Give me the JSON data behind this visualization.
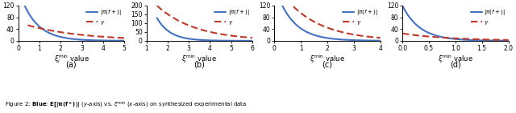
{
  "panels": [
    {
      "xlabel": "$\\xi_i^{\\mathrm{min}}$ value",
      "xlim": [
        0.0,
        5.0
      ],
      "ylim": [
        0,
        120
      ],
      "xticks": [
        0.0,
        1.0,
        2.0,
        3.0,
        4.0,
        5.0
      ],
      "yticks": [
        0,
        40,
        80,
        120
      ],
      "label": "(a)",
      "blue_x0": 0.3,
      "blue_scale": 120,
      "blue_decay": 1.3,
      "red_x0": 0.45,
      "red_scale": 53,
      "red_decay": 0.38
    },
    {
      "xlabel": "$\\xi^{\\mathrm{min}}$ value",
      "xlim": [
        1.0,
        6.0
      ],
      "ylim": [
        0,
        200
      ],
      "xticks": [
        1.0,
        2.0,
        3.0,
        4.0,
        5.0,
        6.0
      ],
      "yticks": [
        0,
        50,
        100,
        150,
        200
      ],
      "label": "(b)",
      "blue_x0": 1.5,
      "blue_scale": 130,
      "blue_decay": 1.6,
      "red_x0": 1.5,
      "red_scale": 200,
      "red_decay": 0.55
    },
    {
      "xlabel": "$\\xi^{\\mathrm{min}}$ value",
      "xlim": [
        0.0,
        4.0
      ],
      "ylim": [
        0,
        120
      ],
      "xticks": [
        0.0,
        1.0,
        2.0,
        3.0,
        4.0
      ],
      "yticks": [
        0,
        40,
        80,
        120
      ],
      "label": "(c)",
      "blue_x0": 0.3,
      "blue_scale": 120,
      "blue_decay": 1.5,
      "red_x0": 0.3,
      "red_scale": 160,
      "red_decay": 0.75
    },
    {
      "xlabel": "$\\xi^{\\mathrm{min}}$ value",
      "xlim": [
        0.0,
        2.0
      ],
      "ylim": [
        0,
        120
      ],
      "xticks": [
        0.0,
        0.5,
        1.0,
        1.5,
        2.0
      ],
      "yticks": [
        0,
        40,
        80,
        120
      ],
      "label": "(d)",
      "blue_x0": 0.0,
      "blue_scale": 120,
      "blue_decay": 3.0,
      "red_x0": 0.0,
      "red_scale": 25,
      "red_decay": 1.1
    }
  ],
  "legend_blue": "$|\\pi(f+)|$",
  "legend_red": "$\\gamma$",
  "blue_color": "#4472C4",
  "red_color": "#C0392B",
  "fig_width": 6.4,
  "fig_height": 1.41,
  "dpi": 100,
  "caption": "Figure 2: Blue: E[|\\u03c0(f+)|| (y-axis) vs. \\u03be^min (x-axis) on synthesized experimental data"
}
